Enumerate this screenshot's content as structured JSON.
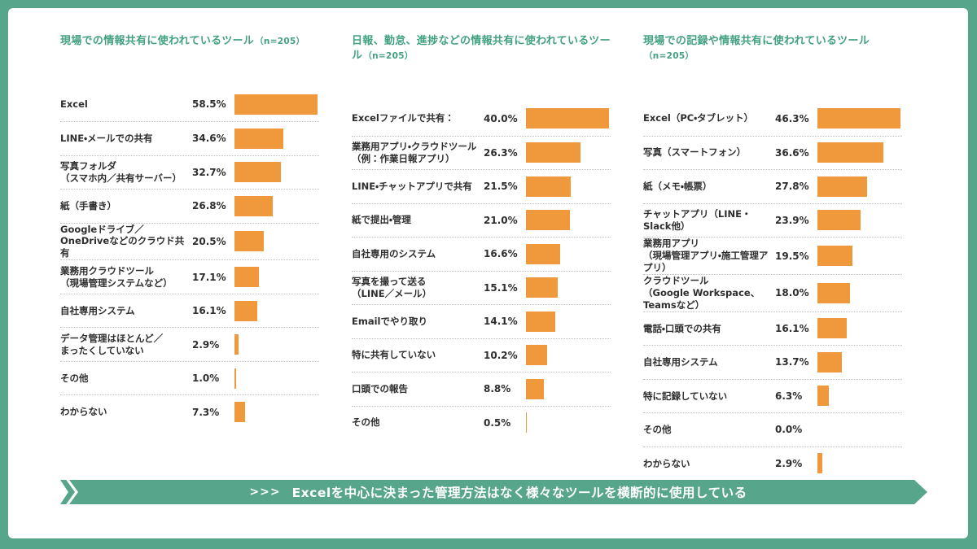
{
  "page": {
    "frame_color": "#57a68c",
    "content_bg": "#ffffff"
  },
  "colors": {
    "bar_orange": "#f0993c",
    "title_green": "#43a183",
    "text_dark": "#2e2e2e",
    "separator": "#bfbfbf"
  },
  "banner": {
    "prefix": ">>>",
    "text": "Excelを中心に決まった管理方法はなく様々なツールを横断的に使用している",
    "bg": "#57a68c",
    "text_color": "#ffffff"
  },
  "chart_data": [
    {
      "type": "bar",
      "orientation": "horizontal",
      "title": "現場での情報共有に使われているツール",
      "n": "n=205",
      "unit": "%",
      "bar_color": "#f0993c",
      "xlim": [
        0,
        58.5
      ],
      "categories": [
        "Excel",
        "LINE・メールでの共有",
        "写真フォルダ\n（スマホ内／共有サーバー）",
        "紙（手書き）",
        "Googleドライブ／\nOneDriveなどのクラウド共有",
        "業務用クラウドツール\n（現場管理システムなど）",
        "自社専用システム",
        "データ管理はほとんど／\nまったくしていない",
        "その他",
        "わからない"
      ],
      "values": [
        58.5,
        34.6,
        32.7,
        26.8,
        20.5,
        17.1,
        16.1,
        2.9,
        1.0,
        7.3
      ]
    },
    {
      "type": "bar",
      "orientation": "horizontal",
      "title": "日報、勤怠、進捗などの情報共有に使われているツール",
      "n": "n=205",
      "unit": "%",
      "bar_color": "#f0993c",
      "xlim": [
        0,
        40.0
      ],
      "categories": [
        "Excelファイルで共有：",
        "業務用アプリ・クラウドツール\n（例：作業日報アプリ）",
        "LINE・チャットアプリで共有",
        "紙で提出・管理",
        "自社専用のシステム",
        "写真を撮って送る\n（LINE／メール）",
        "Emailでやり取り",
        "特に共有していない",
        "口頭での報告",
        "その他"
      ],
      "values": [
        40.0,
        26.3,
        21.5,
        21.0,
        16.6,
        15.1,
        14.1,
        10.2,
        8.8,
        0.5
      ]
    },
    {
      "type": "bar",
      "orientation": "horizontal",
      "title": "現場での記録や情報共有に使われているツール",
      "n": "n=205",
      "unit": "%",
      "bar_color": "#f0993c",
      "xlim": [
        0,
        46.3
      ],
      "categories": [
        "Excel（PC・タブレット）",
        "写真（スマートフォン）",
        "紙（メモ・帳票）",
        "チャットアプリ（LINE・Slack他）",
        "業務用アプリ\n（現場管理アプリ・施工管理アプリ）",
        "クラウドツール\n（Google Workspace、Teamsなど）",
        "電話・口頭での共有",
        "自社専用システム",
        "特に記録していない",
        "その他",
        "わからない"
      ],
      "values": [
        46.3,
        36.6,
        27.8,
        23.9,
        19.5,
        18.0,
        16.1,
        13.7,
        6.3,
        0.0,
        2.9
      ]
    }
  ]
}
